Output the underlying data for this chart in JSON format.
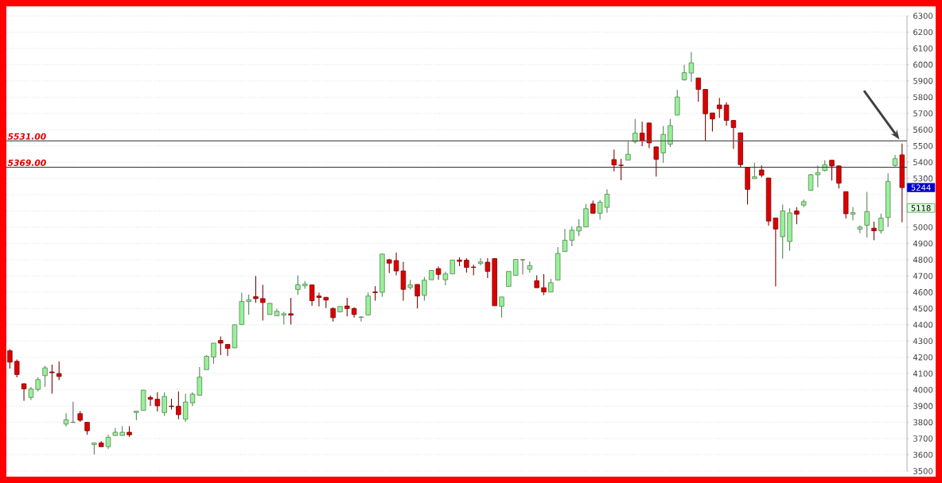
{
  "chart_data": {
    "type": "candlestick",
    "categories": [
      null,
      null,
      null,
      null,
      null,
      null,
      null,
      null,
      null,
      null,
      null,
      null,
      null,
      null,
      null,
      null,
      null,
      null,
      null,
      null,
      null,
      null,
      null,
      null,
      null,
      null,
      null,
      null,
      null,
      null,
      null,
      null,
      null,
      null,
      null,
      null,
      null,
      null,
      null,
      null,
      null,
      null,
      null,
      null,
      null,
      null,
      null,
      null,
      null,
      null,
      null,
      null,
      null,
      null,
      null,
      null,
      null,
      null,
      null,
      null,
      null,
      null,
      null,
      null,
      null,
      null,
      null,
      null,
      null,
      null,
      null,
      null,
      null,
      null,
      null,
      null,
      null,
      null,
      null,
      null,
      null,
      null,
      null,
      null,
      null,
      null,
      null,
      null,
      null,
      null,
      null,
      null,
      null,
      null,
      null,
      null,
      null,
      null,
      null,
      null,
      null,
      null,
      null,
      null,
      null,
      null,
      null,
      null,
      null,
      null,
      null,
      null,
      null,
      null,
      null,
      null,
      null,
      null,
      null,
      null,
      null,
      null,
      null,
      null,
      null,
      null,
      null,
      null
    ],
    "ohlc": [
      [
        4240,
        4250,
        4130,
        4170
      ],
      [
        4175,
        4187,
        4077,
        4094
      ],
      [
        4037,
        4040,
        3932,
        4006
      ],
      [
        3953,
        4018,
        3937,
        4005
      ],
      [
        4002,
        4077,
        3990,
        4063
      ],
      [
        4087,
        4147,
        4018,
        4135
      ],
      [
        4110,
        4155,
        3977,
        4105
      ],
      [
        4100,
        4174,
        4060,
        4082
      ],
      [
        3789,
        3856,
        3775,
        3816
      ],
      [
        3800,
        3926,
        3798,
        3800
      ],
      [
        3853,
        3869,
        3803,
        3813
      ],
      [
        3800,
        3800,
        3723,
        3748
      ],
      [
        3663,
        3673,
        3603,
        3673
      ],
      [
        3673,
        3684,
        3650,
        3650
      ],
      [
        3650,
        3723,
        3635,
        3708
      ],
      [
        3719,
        3765,
        3719,
        3739
      ],
      [
        3719,
        3776,
        3719,
        3739
      ],
      [
        3739,
        3776,
        3710,
        3723
      ],
      [
        3860,
        3870,
        3813,
        3869
      ],
      [
        3873,
        4000,
        3873,
        3998
      ],
      [
        3953,
        3965,
        3901,
        3942
      ],
      [
        3942,
        3985,
        3866,
        3901
      ],
      [
        3860,
        3985,
        3839,
        3959
      ],
      [
        3900,
        3945,
        3879,
        3897
      ],
      [
        3899,
        3990,
        3819,
        3847
      ],
      [
        3819,
        3977,
        3803,
        3925
      ],
      [
        3920,
        3985,
        3899,
        3973
      ],
      [
        3966,
        4140,
        3966,
        4078
      ],
      [
        4124,
        4214,
        4124,
        4206
      ],
      [
        4202,
        4287,
        4160,
        4287
      ],
      [
        4304,
        4328,
        4214,
        4287
      ],
      [
        4279,
        4279,
        4209,
        4255
      ],
      [
        4258,
        4400,
        4258,
        4400
      ],
      [
        4401,
        4597,
        4401,
        4543
      ],
      [
        4543,
        4586,
        4462,
        4553
      ],
      [
        4573,
        4700,
        4535,
        4561
      ],
      [
        4561,
        4646,
        4426,
        4537
      ],
      [
        4463,
        4532,
        4463,
        4532
      ],
      [
        4455,
        4499,
        4455,
        4483
      ],
      [
        4459,
        4480,
        4401,
        4468
      ],
      [
        4468,
        4565,
        4401,
        4459
      ],
      [
        4617,
        4703,
        4584,
        4646
      ],
      [
        4640,
        4669,
        4621,
        4650
      ],
      [
        4645,
        4645,
        4516,
        4548
      ],
      [
        4577,
        4597,
        4513,
        4568
      ],
      [
        4569,
        4569,
        4503,
        4552
      ],
      [
        4500,
        4508,
        4420,
        4444
      ],
      [
        4479,
        4513,
        4479,
        4513
      ],
      [
        4516,
        4565,
        4452,
        4500
      ],
      [
        4500,
        4508,
        4444,
        4463
      ],
      [
        4445,
        4452,
        4420,
        4448
      ],
      [
        4460,
        4600,
        4460,
        4577
      ],
      [
        4602,
        4637,
        4548,
        4598
      ],
      [
        4600,
        4835,
        4573,
        4835
      ],
      [
        4800,
        4806,
        4718,
        4779
      ],
      [
        4795,
        4844,
        4705,
        4731
      ],
      [
        4731,
        4787,
        4548,
        4618
      ],
      [
        4629,
        4677,
        4618,
        4645
      ],
      [
        4648,
        4648,
        4500,
        4577
      ],
      [
        4581,
        4694,
        4548,
        4674
      ],
      [
        4677,
        4734,
        4677,
        4734
      ],
      [
        4745,
        4758,
        4677,
        4710
      ],
      [
        4677,
        4726,
        4642,
        4713
      ],
      [
        4713,
        4798,
        4713,
        4798
      ],
      [
        4798,
        4815,
        4761,
        4790
      ],
      [
        4797,
        4810,
        4720,
        4753
      ],
      [
        4755,
        4769,
        4704,
        4753
      ],
      [
        4777,
        4810,
        4764,
        4787
      ],
      [
        4785,
        4810,
        4688,
        4728
      ],
      [
        4807,
        4810,
        4517,
        4517
      ],
      [
        4514,
        4571,
        4444,
        4571
      ],
      [
        4636,
        4728,
        4636,
        4728
      ],
      [
        4704,
        4802,
        4704,
        4802
      ],
      [
        4800,
        4802,
        4709,
        4800
      ],
      [
        4741,
        4790,
        4720,
        4764
      ],
      [
        4671,
        4704,
        4628,
        4628
      ],
      [
        4628,
        4712,
        4582,
        4602
      ],
      [
        4602,
        4683,
        4602,
        4659
      ],
      [
        4675,
        4878,
        4675,
        4839
      ],
      [
        4850,
        4989,
        4850,
        4920
      ],
      [
        4920,
        5005,
        4883,
        4982
      ],
      [
        4977,
        5049,
        4945,
        5002
      ],
      [
        5002,
        5143,
        5002,
        5114
      ],
      [
        5143,
        5164,
        5086,
        5086
      ],
      [
        5086,
        5167,
        5046,
        5154
      ],
      [
        5122,
        5233,
        5089,
        5203
      ],
      [
        5416,
        5478,
        5344,
        5383
      ],
      [
        5382,
        5421,
        5290,
        5380
      ],
      [
        5413,
        5527,
        5413,
        5449
      ],
      [
        5527,
        5666,
        5514,
        5579
      ],
      [
        5579,
        5649,
        5498,
        5530
      ],
      [
        5641,
        5644,
        5486,
        5519
      ],
      [
        5494,
        5498,
        5312,
        5418
      ],
      [
        5457,
        5622,
        5396,
        5571
      ],
      [
        5511,
        5666,
        5494,
        5625
      ],
      [
        5690,
        5845,
        5690,
        5801
      ],
      [
        5907,
        6000,
        5902,
        5951
      ],
      [
        5948,
        6078,
        5894,
        6011
      ],
      [
        5918,
        5918,
        5772,
        5848
      ],
      [
        5848,
        5848,
        5530,
        5698
      ],
      [
        5703,
        5703,
        5589,
        5666
      ],
      [
        5752,
        5796,
        5672,
        5729
      ],
      [
        5752,
        5768,
        5625,
        5657
      ],
      [
        5657,
        5657,
        5481,
        5613
      ],
      [
        5581,
        5581,
        5372,
        5385
      ],
      [
        5369,
        5369,
        5139,
        5233
      ],
      [
        5299,
        5396,
        5299,
        5310
      ],
      [
        5352,
        5380,
        5307,
        5320
      ],
      [
        5303,
        5303,
        5010,
        5038
      ],
      [
        5057,
        5057,
        4636,
        4989
      ],
      [
        4942,
        5140,
        4807,
        5100
      ],
      [
        4912,
        5116,
        4855,
        5088
      ],
      [
        5100,
        5124,
        5018,
        5080
      ],
      [
        5136,
        5170,
        5124,
        5157
      ],
      [
        5227,
        5328,
        5227,
        5323
      ],
      [
        5323,
        5380,
        5246,
        5336
      ],
      [
        5349,
        5412,
        5344,
        5385
      ],
      [
        5412,
        5412,
        5287,
        5377
      ],
      [
        5377,
        5380,
        5238,
        5271
      ],
      [
        5219,
        5219,
        5054,
        5083
      ],
      [
        5080,
        5124,
        5043,
        5090
      ],
      [
        4988,
        5011,
        4964,
        5001
      ],
      [
        5012,
        5217,
        4937,
        5096
      ],
      [
        4994,
        5034,
        4920,
        4978
      ],
      [
        4978,
        5083,
        4961,
        5056
      ],
      [
        5059,
        5331,
        5002,
        5282
      ],
      [
        5380,
        5445,
        5373,
        5422
      ],
      [
        5445,
        5515,
        5031,
        5244
      ]
    ],
    "colors": [
      "#dd0000",
      "#dd0000",
      "#dd0000",
      "#99f099",
      "#99f099",
      "#99f099",
      "#dd0000",
      "#dd0000",
      "#99f099",
      "#666666",
      "#dd0000",
      "#dd0000",
      "#99f099",
      "#dd0000",
      "#99f099",
      "#99f099",
      "#99f099",
      "#dd0000",
      "#99f099",
      "#99f099",
      "#dd0000",
      "#dd0000",
      "#99f099",
      "#dd0000",
      "#dd0000",
      "#99f099",
      "#99f099",
      "#99f099",
      "#99f099",
      "#99f099",
      "#dd0000",
      "#dd0000",
      "#99f099",
      "#99f099",
      "#99f099",
      "#dd0000",
      "#dd0000",
      "#99f099",
      "#99f099",
      "#99f099",
      "#dd0000",
      "#99f099",
      "#99f099",
      "#dd0000",
      "#dd0000",
      "#dd0000",
      "#dd0000",
      "#99f099",
      "#dd0000",
      "#dd0000",
      "#99f099",
      "#99f099",
      "#dd0000",
      "#99f099",
      "#dd0000",
      "#dd0000",
      "#dd0000",
      "#99f099",
      "#dd0000",
      "#99f099",
      "#99f099",
      "#dd0000",
      "#99f099",
      "#99f099",
      "#dd0000",
      "#dd0000",
      "#dd0000",
      "#99f099",
      "#dd0000",
      "#dd0000",
      "#99f099",
      "#99f099",
      "#99f099",
      "#666666",
      "#99f099",
      "#dd0000",
      "#dd0000",
      "#99f099",
      "#99f099",
      "#99f099",
      "#99f099",
      "#99f099",
      "#99f099",
      "#dd0000",
      "#99f099",
      "#99f099",
      "#dd0000",
      "#dd0000",
      "#99f099",
      "#99f099",
      "#dd0000",
      "#dd0000",
      "#dd0000",
      "#99f099",
      "#99f099",
      "#99f099",
      "#99f099",
      "#99f099",
      "#dd0000",
      "#dd0000",
      "#dd0000",
      "#dd0000",
      "#dd0000",
      "#dd0000",
      "#dd0000",
      "#dd0000",
      "#99f099",
      "#dd0000",
      "#dd0000",
      "#dd0000",
      "#99f099",
      "#99f099",
      "#dd0000",
      "#99f099",
      "#99f099",
      "#99f099",
      "#99f099",
      "#dd0000",
      "#dd0000",
      "#dd0000",
      "#99f099",
      "#99f099",
      "#99f099",
      "#dd0000",
      "#99f099",
      "#99f099",
      "#99f099",
      "#dd0000"
    ],
    "ylim": [
      3500,
      6300
    ],
    "yticks": [
      3500,
      3600,
      3700,
      3800,
      3900,
      4000,
      4100,
      4200,
      4300,
      4400,
      4500,
      4600,
      4700,
      4800,
      4900,
      5000,
      {
        "value": 5100,
        "label": null
      },
      {
        "value": 5200,
        "label": null
      },
      5300,
      5400,
      5500,
      5600,
      5700,
      5800,
      5900,
      6000,
      6100,
      6200,
      6300
    ],
    "grid": "y",
    "ref_lines": [
      {
        "axis": "y",
        "value": 5531,
        "label": "5531.00",
        "color": "#555555"
      },
      {
        "axis": "y",
        "value": 5369,
        "label": "5369.00",
        "color": "#333333"
      }
    ],
    "annotations": [
      {
        "text": "5244",
        "y": 5244
      },
      {
        "text": "5118",
        "y": 5118
      }
    ]
  }
}
